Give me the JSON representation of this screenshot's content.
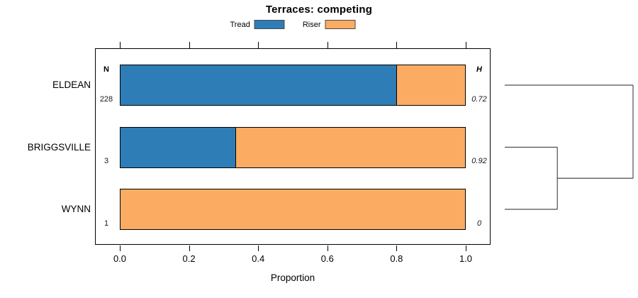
{
  "chart_data": {
    "type": "bar",
    "stacked": true,
    "orientation": "horizontal",
    "title": "Terraces: competing",
    "xlabel": "Proportion",
    "xlim": [
      0,
      1
    ],
    "xticks": [
      0,
      0.2,
      0.4,
      0.6,
      0.8,
      1
    ],
    "xtick_labels": [
      "0.0",
      "0.2",
      "0.4",
      "0.6",
      "0.8",
      "1.0"
    ],
    "grid": false,
    "legend_position": "top-center",
    "categories": [
      "ELDEAN",
      "BRIGGSVILLE",
      "WYNN"
    ],
    "series": [
      {
        "name": "Tread",
        "color": "#2E7DB6",
        "values": [
          0.8,
          0.3333,
          0
        ]
      },
      {
        "name": "Riser",
        "color": "#FBAC62",
        "values": [
          0.2,
          0.6667,
          1
        ]
      }
    ],
    "n_column": {
      "header": "N",
      "values": [
        "228",
        "3",
        "1"
      ]
    },
    "h_column": {
      "header": "H",
      "values": [
        "0.72",
        "0.92",
        "0"
      ]
    },
    "dendrogram": {
      "description": "cluster tree at right of bars; BRIGGSVILLE and WYNN merge first, the pair then merges with ELDEAN at full height",
      "line_color": "#4d4d4d",
      "merges": [
        {
          "members": [
            "BRIGGSVILLE",
            "WYNN"
          ],
          "relative_height": 0.41
        },
        {
          "members": [
            "BRIGGSVILLE+WYNN",
            "ELDEAN"
          ],
          "relative_height": 1.0
        }
      ]
    }
  }
}
